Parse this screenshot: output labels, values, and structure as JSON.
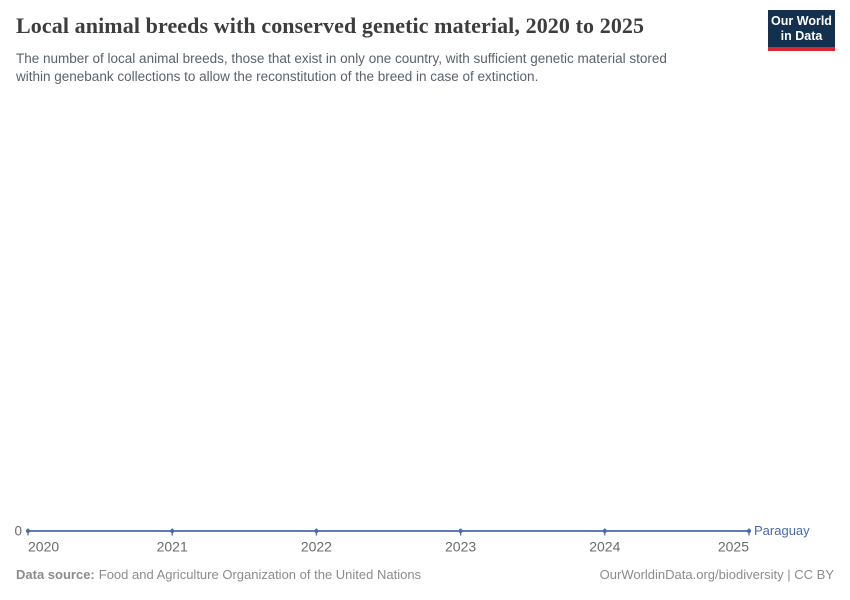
{
  "header": {
    "title": "Local animal breeds with conserved genetic material, 2020 to 2025",
    "subtitle_lines": [
      "The number of local animal breeds, those that exist in only one country, with sufficient genetic material stored",
      "within genebank collections to allow the reconstitution of the breed in case of extinction."
    ],
    "logo": {
      "line1": "Our World",
      "line2": "in Data"
    }
  },
  "chart_data": {
    "type": "line",
    "title": "Local animal breeds with conserved genetic material, 2020 to 2025",
    "x": [
      2020,
      2021,
      2022,
      2023,
      2024,
      2025
    ],
    "x_ticks": [
      "2020",
      "2021",
      "2022",
      "2023",
      "2024",
      "2025"
    ],
    "y_ticks": [
      "0"
    ],
    "ylim": [
      0,
      null
    ],
    "grid": false,
    "legend": "end-of-line-label",
    "series": [
      {
        "name": "Paraguay",
        "color": "#4a69ad",
        "values": [
          0,
          0,
          0,
          0,
          0,
          0
        ]
      }
    ]
  },
  "colors": {
    "accent": "#4a69ad",
    "logo_bg": "#14304f",
    "logo_bar": "#d7282f",
    "tick_label": "#6b6b6b",
    "footer_text": "#8c8c8c"
  },
  "footer": {
    "source_label": "Data source:",
    "source_text": "Food and Agriculture Organization of the United Nations",
    "link_text": "OurWorldinData.org/biodiversity | CC BY"
  }
}
